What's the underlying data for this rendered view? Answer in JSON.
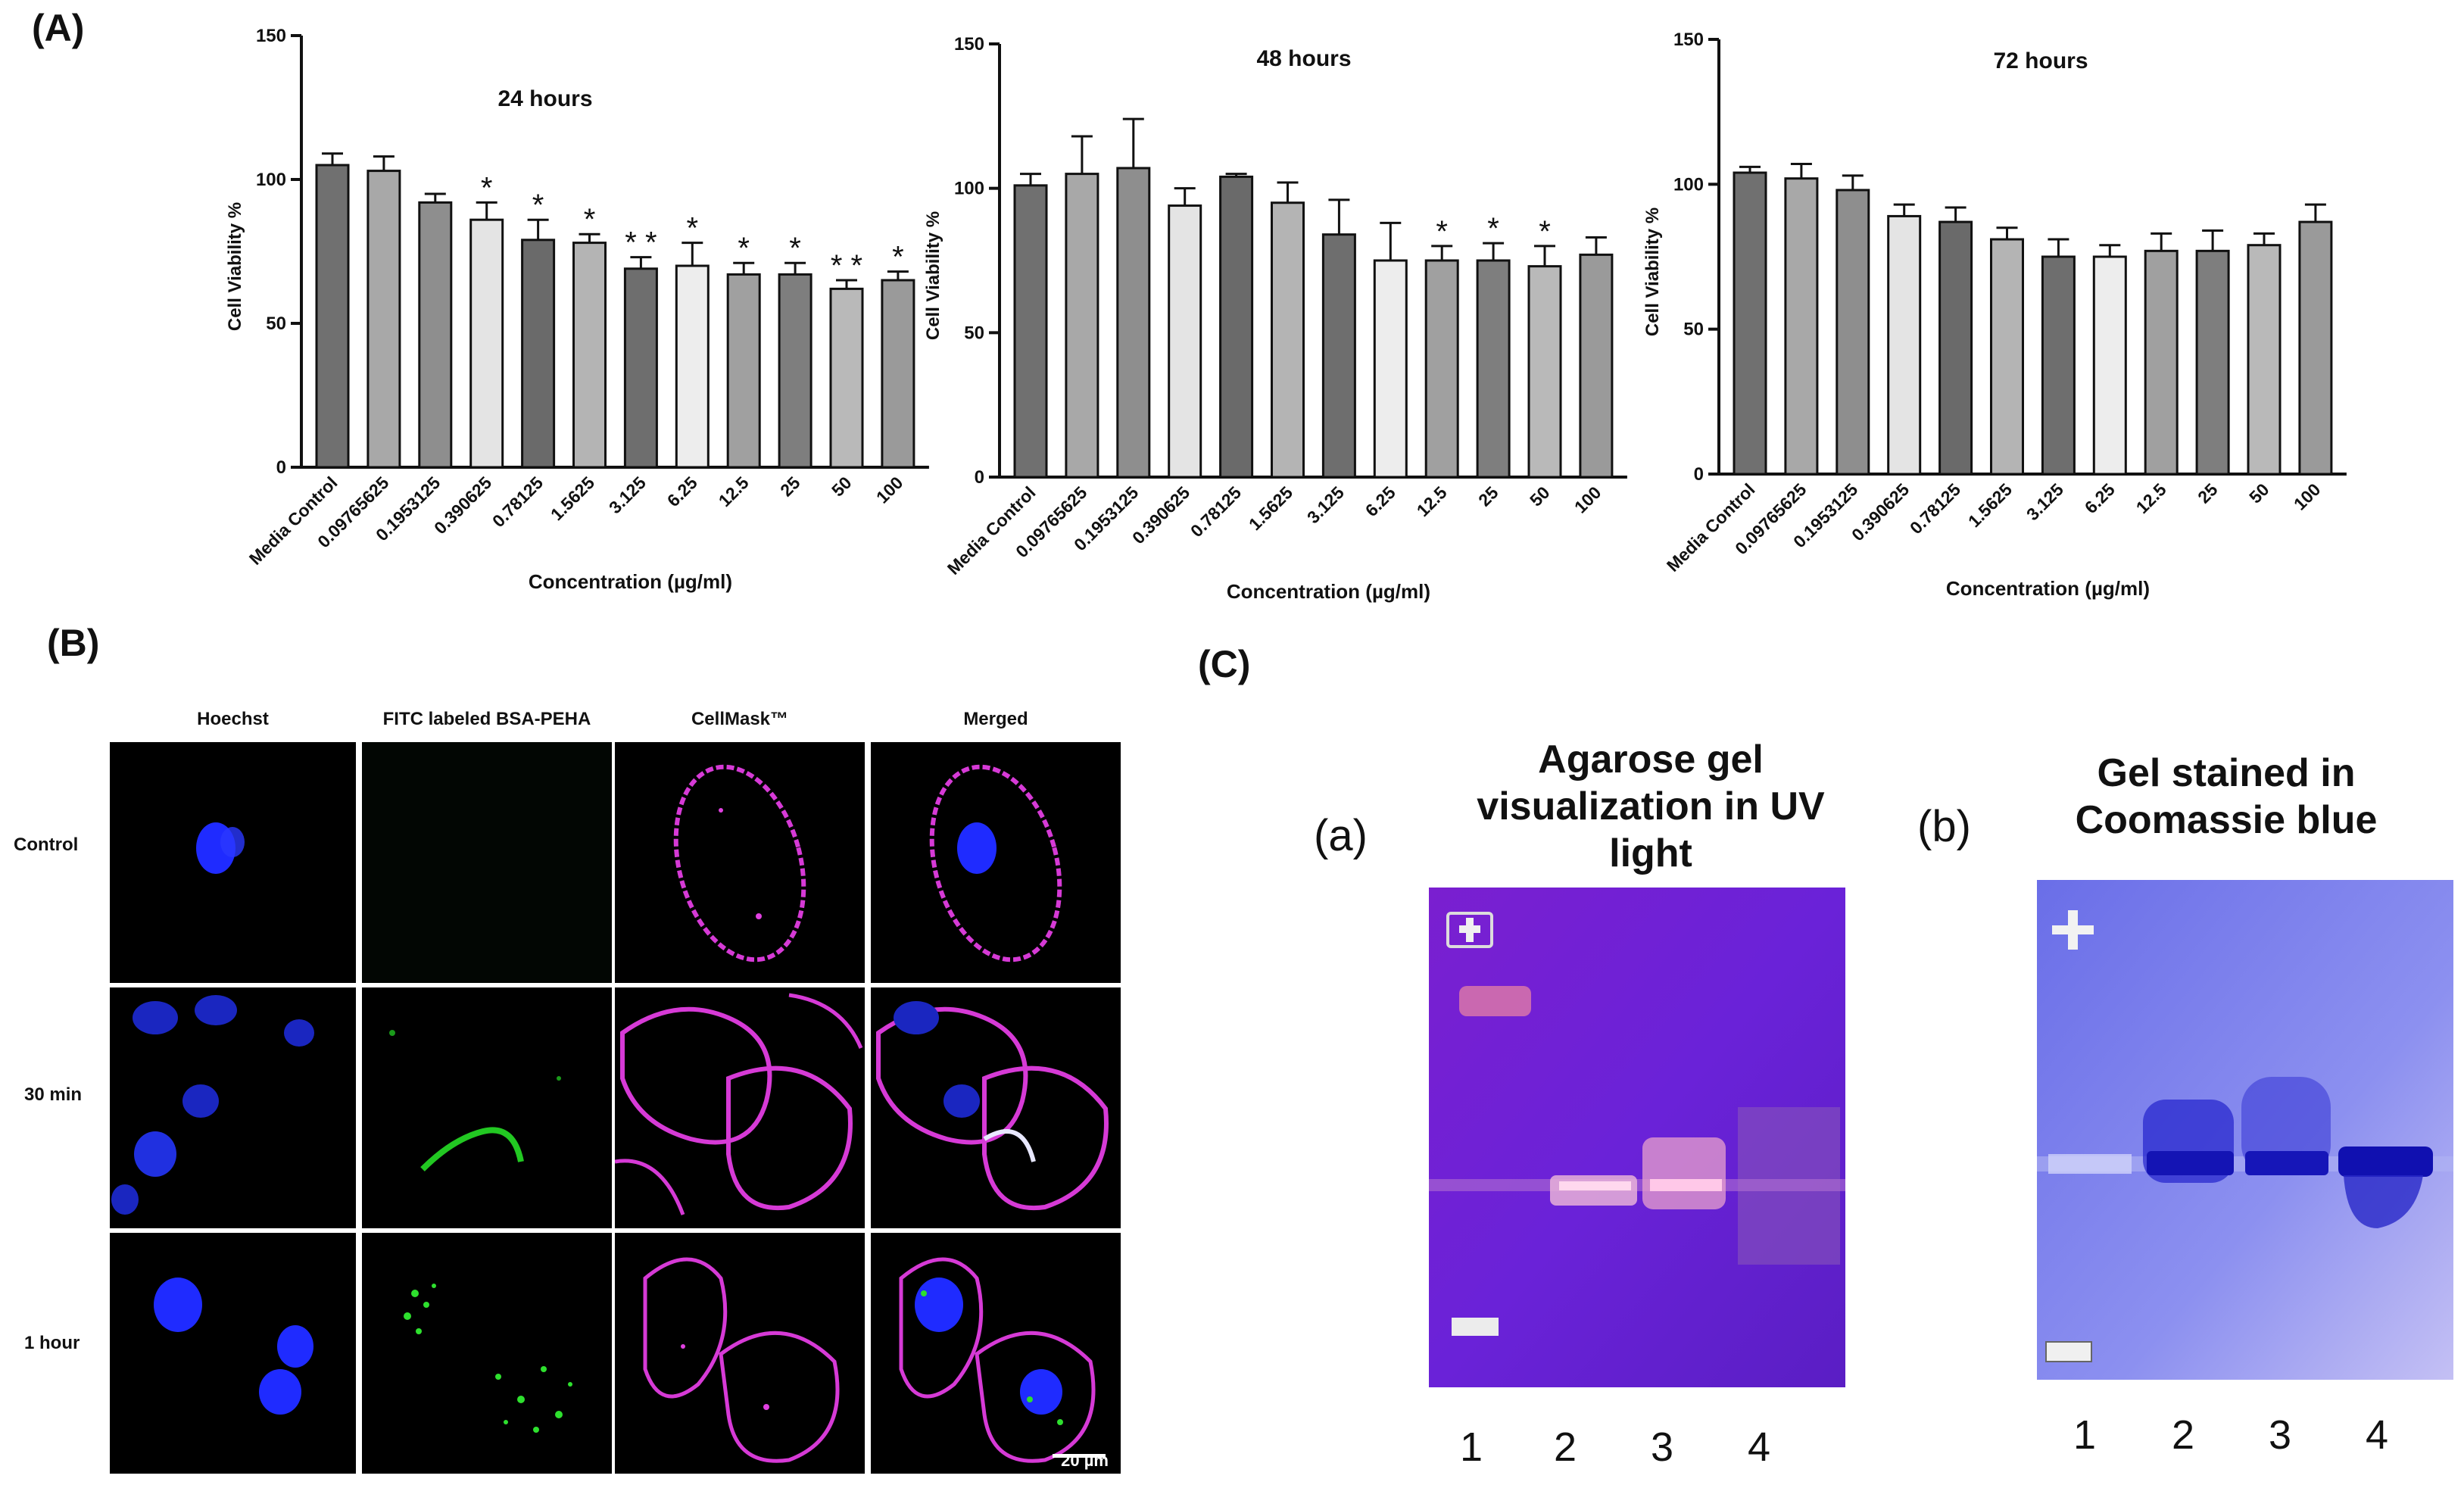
{
  "panels": {
    "A": "(A)",
    "B": "(B)",
    "C": "(C)"
  },
  "chart_data": [
    {
      "type": "bar",
      "title": "24 hours",
      "xlabel": "Concentration (µg/ml)",
      "ylabel": "Cell Viability %",
      "ylim": [
        0,
        150
      ],
      "yticks": [
        "0",
        "50",
        "100",
        "150"
      ],
      "categories": [
        "Media Control",
        "0.09765625",
        "0.1953125",
        "0.390625",
        "0.78125",
        "1.5625",
        "3.125",
        "6.25",
        "12.5",
        "25",
        "50",
        "100"
      ],
      "values": [
        105,
        103,
        92,
        86,
        79,
        78,
        69,
        70,
        67,
        67,
        62,
        65
      ],
      "errors": [
        4,
        5,
        3,
        6,
        7,
        3,
        4,
        8,
        4,
        4,
        3,
        3
      ],
      "significance": [
        "",
        "",
        "",
        "*",
        "*",
        "*",
        "**",
        "*",
        "*",
        "*",
        "**",
        "*"
      ],
      "colors": [
        "#707070",
        "#a8a8a8",
        "#8e8e8e",
        "#e4e4e4",
        "#6a6a6a",
        "#b4b4b4",
        "#6e6e6e",
        "#ededed",
        "#a0a0a0",
        "#7e7e7e",
        "#b9b9b9",
        "#9a9a9a"
      ]
    },
    {
      "type": "bar",
      "title": "48 hours",
      "xlabel": "Concentration (µg/ml)",
      "ylabel": "Cell Viability %",
      "ylim": [
        0,
        150
      ],
      "yticks": [
        "0",
        "50",
        "100",
        "150"
      ],
      "categories": [
        "Media Control",
        "0.09765625",
        "0.1953125",
        "0.390625",
        "0.78125",
        "1.5625",
        "3.125",
        "6.25",
        "12.5",
        "25",
        "50",
        "100"
      ],
      "values": [
        101,
        105,
        107,
        94,
        104,
        95,
        84,
        75,
        75,
        75,
        73,
        77
      ],
      "errors": [
        4,
        13,
        17,
        6,
        1,
        7,
        12,
        13,
        5,
        6,
        7,
        6
      ],
      "significance": [
        "",
        "",
        "",
        "",
        "",
        "",
        "",
        "",
        "*",
        "*",
        "*",
        ""
      ],
      "colors": [
        "#707070",
        "#a8a8a8",
        "#8e8e8e",
        "#e4e4e4",
        "#6a6a6a",
        "#b4b4b4",
        "#6e6e6e",
        "#ededed",
        "#a0a0a0",
        "#7e7e7e",
        "#b9b9b9",
        "#9a9a9a"
      ]
    },
    {
      "type": "bar",
      "title": "72 hours",
      "xlabel": "Concentration (µg/ml)",
      "ylabel": "Cell Viability %",
      "ylim": [
        0,
        150
      ],
      "yticks": [
        "0",
        "50",
        "100",
        "150"
      ],
      "categories": [
        "Media Control",
        "0.09765625",
        "0.1953125",
        "0.390625",
        "0.78125",
        "1.5625",
        "3.125",
        "6.25",
        "12.5",
        "25",
        "50",
        "100"
      ],
      "values": [
        104,
        102,
        98,
        89,
        87,
        81,
        75,
        75,
        77,
        77,
        79,
        87
      ],
      "errors": [
        2,
        5,
        5,
        4,
        5,
        4,
        6,
        4,
        6,
        7,
        4,
        6
      ],
      "significance": [
        "",
        "",
        "",
        "",
        "",
        "",
        "",
        "",
        "",
        "",
        "",
        ""
      ],
      "colors": [
        "#707070",
        "#a8a8a8",
        "#8e8e8e",
        "#e4e4e4",
        "#6a6a6a",
        "#b4b4b4",
        "#6e6e6e",
        "#ededed",
        "#a0a0a0",
        "#7e7e7e",
        "#b9b9b9",
        "#9a9a9a"
      ]
    }
  ],
  "microscopy": {
    "columns": [
      "Hoechst",
      "FITC labeled BSA-PEHA",
      "CellMask™",
      "Merged"
    ],
    "rows": [
      "Control",
      "30 min",
      "1 hour"
    ],
    "scale_bar": "20 µm"
  },
  "gels": {
    "a": {
      "label": "(a)",
      "title": "Agarose gel visualization in UV light",
      "lanes": [
        "1",
        "2",
        "3",
        "4"
      ]
    },
    "b": {
      "label": "(b)",
      "title": "Gel stained in Coomassie blue",
      "lanes": [
        "1",
        "2",
        "3",
        "4"
      ]
    }
  }
}
